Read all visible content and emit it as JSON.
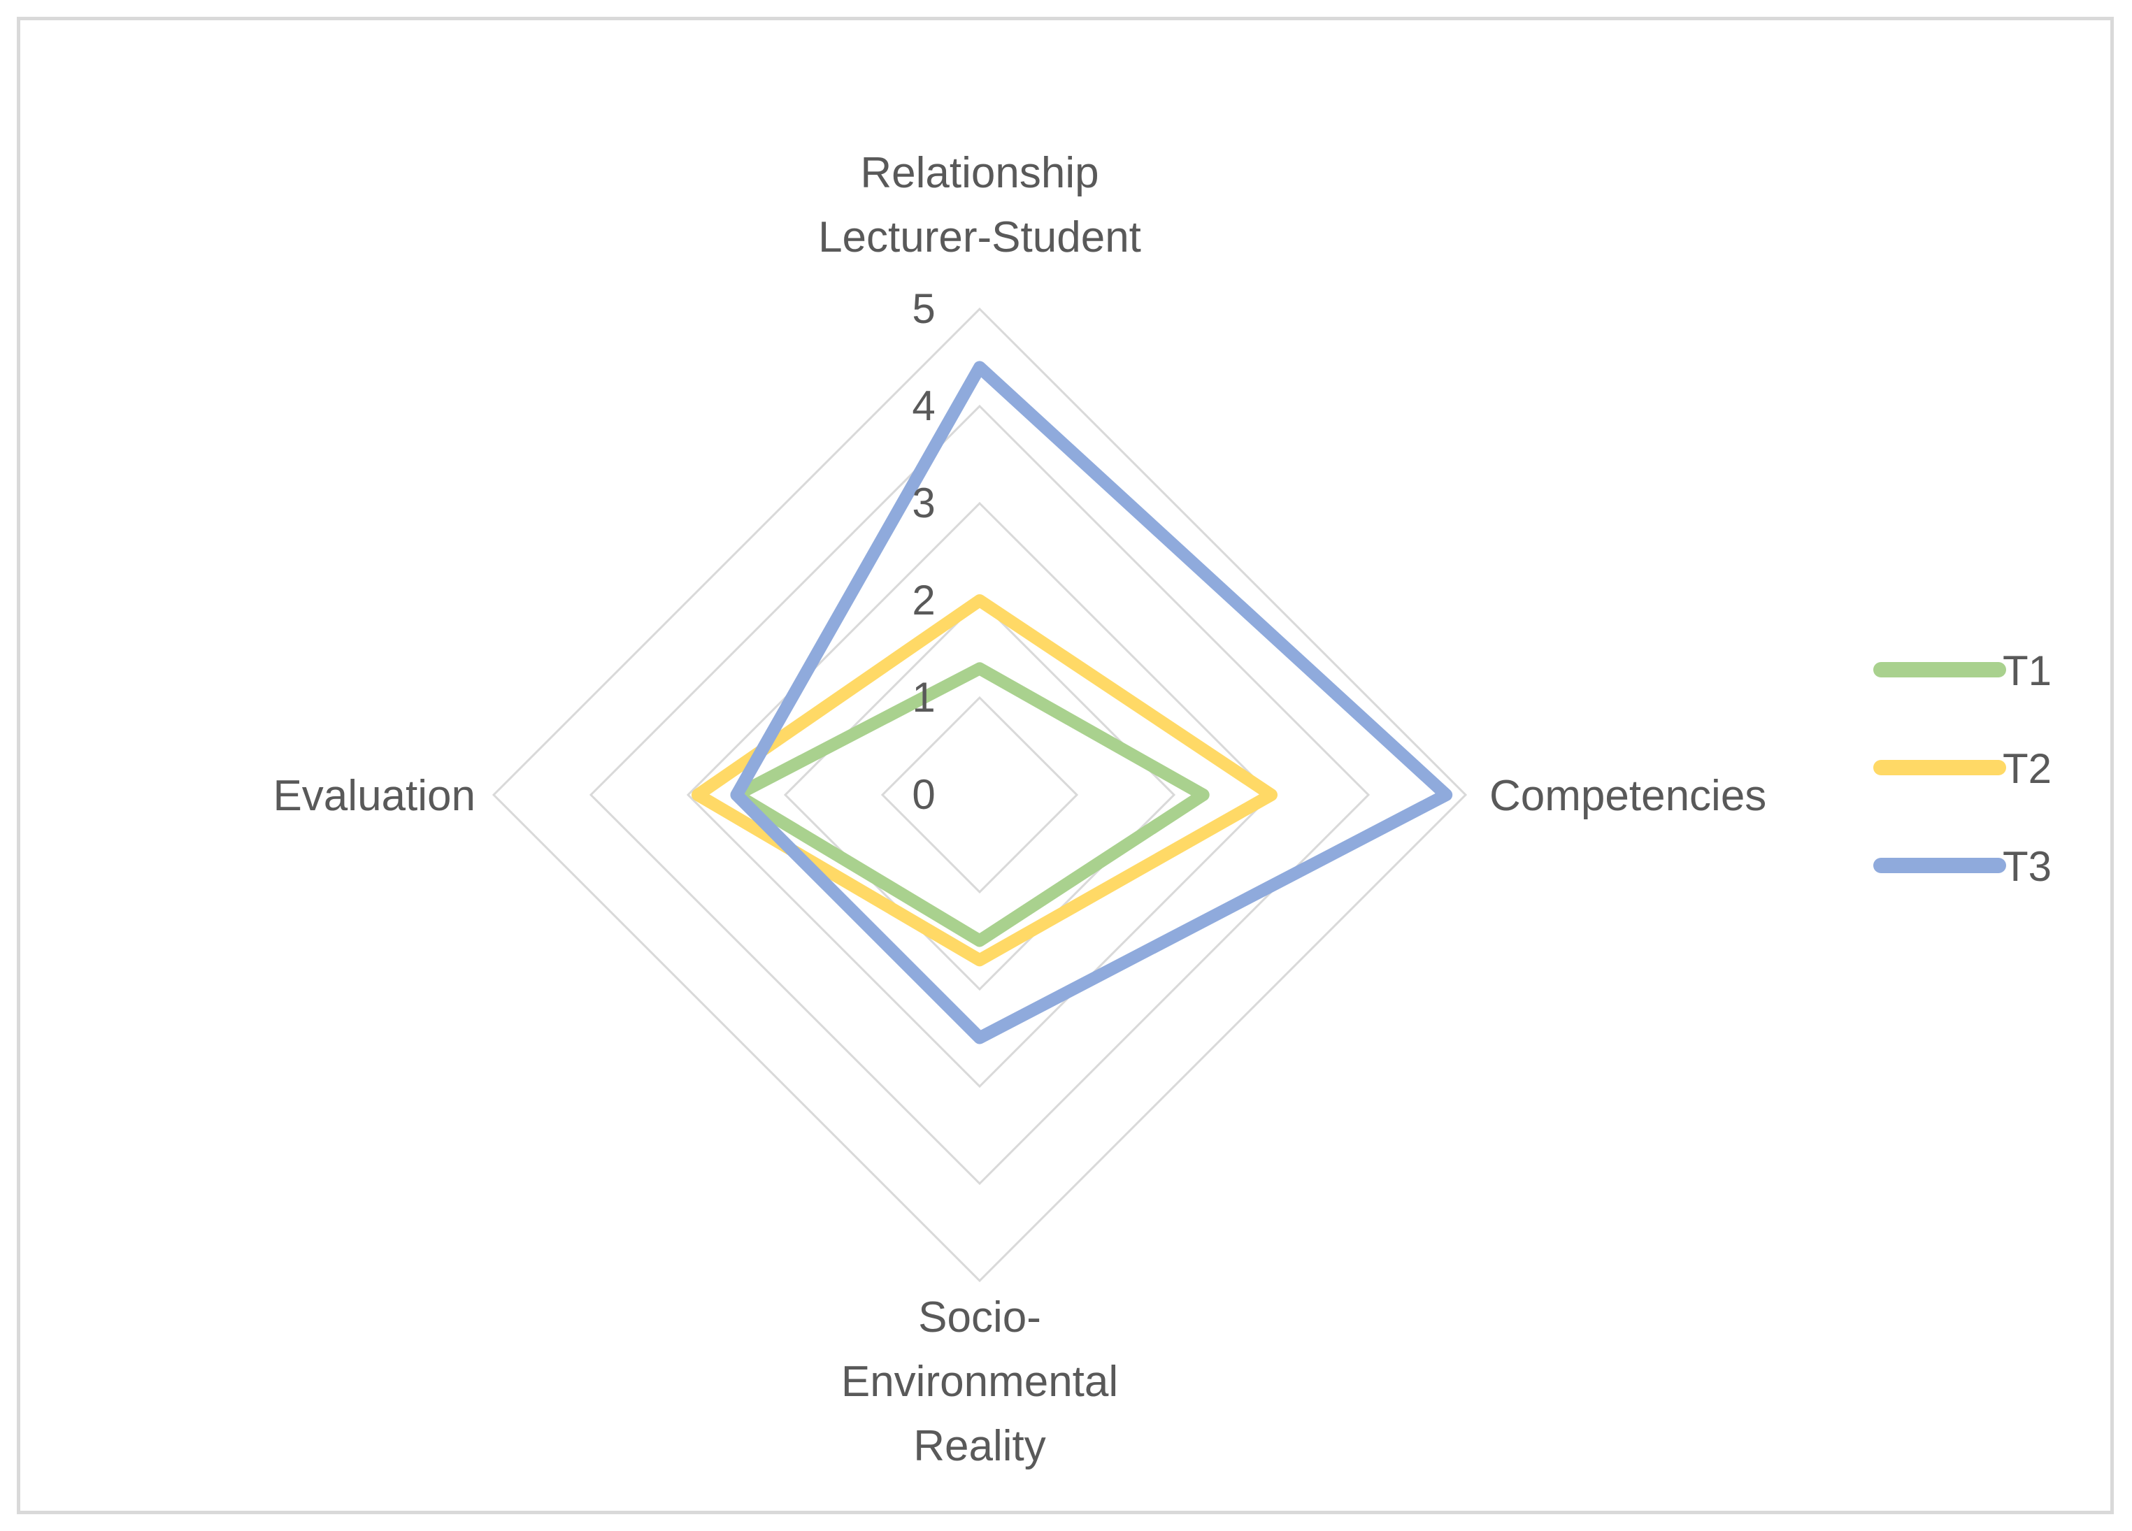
{
  "chart_data": {
    "type": "radar",
    "title": "",
    "axes": [
      {
        "label_lines": [
          "Relationship",
          "Lecturer-Student"
        ]
      },
      {
        "label_lines": [
          "Competencies"
        ]
      },
      {
        "label_lines": [
          "Socio-",
          "Environmental",
          "Reality"
        ]
      },
      {
        "label_lines": [
          "Evaluation"
        ]
      }
    ],
    "r_range": [
      0,
      5
    ],
    "r_ticks": [
      "0",
      "1",
      "2",
      "3",
      "4",
      "5"
    ],
    "grid": true,
    "legend_position": "right",
    "series": [
      {
        "name": "T1",
        "color": "#a9d18e",
        "values": [
          1.3,
          2.3,
          1.5,
          2.5
        ]
      },
      {
        "name": "T2",
        "color": "#ffd966",
        "values": [
          2.0,
          3.0,
          1.7,
          2.9
        ]
      },
      {
        "name": "T3",
        "color": "#8faadc",
        "values": [
          4.4,
          4.8,
          2.5,
          2.5
        ]
      }
    ],
    "grid_color": "#d9d9d9",
    "text_color": "#595959"
  }
}
